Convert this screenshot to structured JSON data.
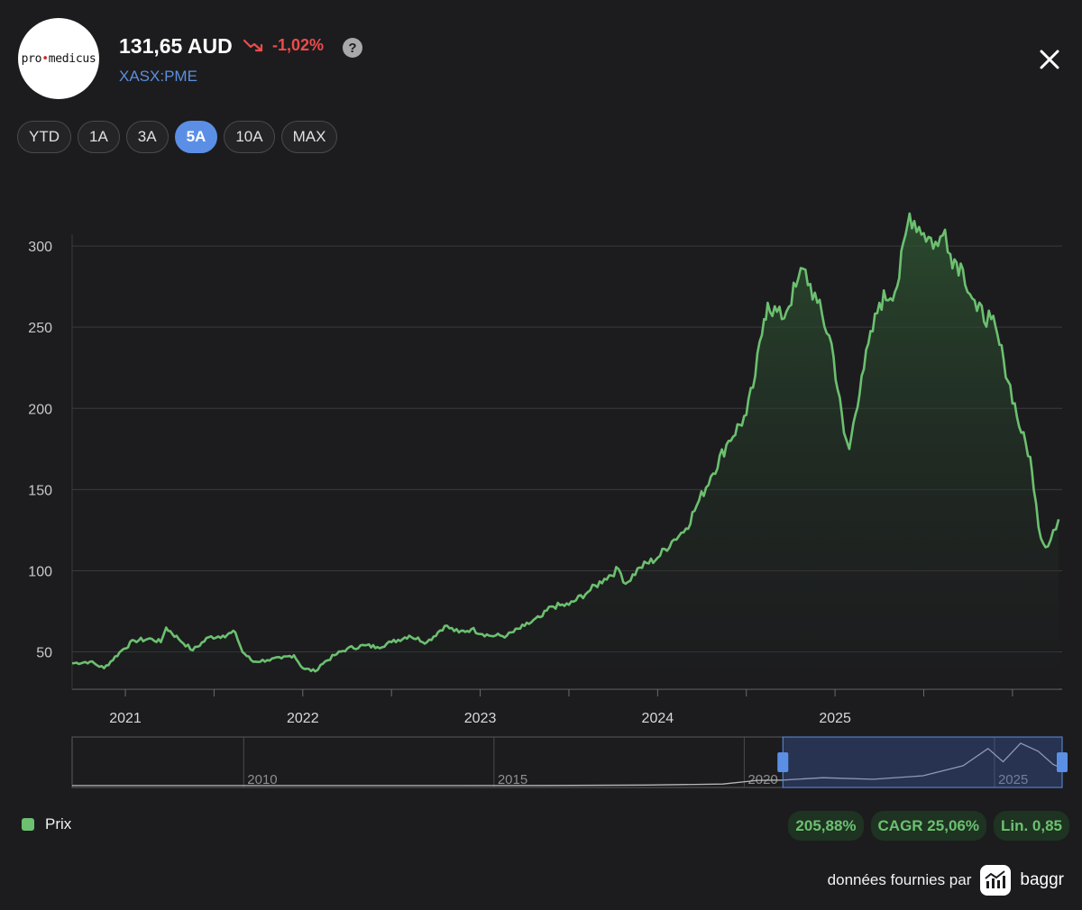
{
  "header": {
    "logo_text_left": "pro",
    "logo_text_dot": "•",
    "logo_text_right": "medicus",
    "price": "131,65 AUD",
    "change": "-1,02%",
    "change_color": "#ef4b4b",
    "ticker": "XASX:PME",
    "help_label": "?",
    "close_icon": "close-icon"
  },
  "ranges": [
    {
      "label": "YTD",
      "active": false
    },
    {
      "label": "1A",
      "active": false
    },
    {
      "label": "3A",
      "active": false
    },
    {
      "label": "5A",
      "active": true
    },
    {
      "label": "10A",
      "active": false
    },
    {
      "label": "MAX",
      "active": false
    }
  ],
  "legend": {
    "label": "Prix",
    "color": "#6cc070"
  },
  "badges": [
    "205,88%",
    "CAGR 25,06%",
    "Lin. 0,85"
  ],
  "credit": {
    "text": "données fournies par",
    "brand": "baggr"
  },
  "chart_data": {
    "type": "area",
    "series": [
      {
        "name": "Prix",
        "color": "#6cc070",
        "points": [
          [
            2020.7,
            43
          ],
          [
            2020.8,
            44
          ],
          [
            2020.88,
            40
          ],
          [
            2020.98,
            51
          ],
          [
            2021.05,
            57
          ],
          [
            2021.15,
            58
          ],
          [
            2021.2,
            56
          ],
          [
            2021.23,
            65
          ],
          [
            2021.3,
            58
          ],
          [
            2021.38,
            51
          ],
          [
            2021.47,
            59
          ],
          [
            2021.55,
            60
          ],
          [
            2021.62,
            62
          ],
          [
            2021.66,
            50
          ],
          [
            2021.72,
            44
          ],
          [
            2021.8,
            45
          ],
          [
            2021.88,
            46
          ],
          [
            2021.95,
            48
          ],
          [
            2022.0,
            40
          ],
          [
            2022.07,
            38
          ],
          [
            2022.1,
            42
          ],
          [
            2022.18,
            48
          ],
          [
            2022.25,
            52
          ],
          [
            2022.35,
            54
          ],
          [
            2022.42,
            53
          ],
          [
            2022.5,
            56
          ],
          [
            2022.6,
            60
          ],
          [
            2022.7,
            56
          ],
          [
            2022.8,
            66
          ],
          [
            2022.88,
            62
          ],
          [
            2022.95,
            64
          ],
          [
            2023.05,
            60
          ],
          [
            2023.15,
            60
          ],
          [
            2023.25,
            66
          ],
          [
            2023.35,
            72
          ],
          [
            2023.4,
            78
          ],
          [
            2023.5,
            79
          ],
          [
            2023.62,
            88
          ],
          [
            2023.7,
            95
          ],
          [
            2023.78,
            101
          ],
          [
            2023.82,
            92
          ],
          [
            2023.9,
            102
          ],
          [
            2024.0,
            108
          ],
          [
            2024.08,
            118
          ],
          [
            2024.16,
            126
          ],
          [
            2024.22,
            140
          ],
          [
            2024.3,
            158
          ],
          [
            2024.4,
            180
          ],
          [
            2024.5,
            196
          ],
          [
            2024.55,
            220
          ],
          [
            2024.6,
            255
          ],
          [
            2024.62,
            265
          ],
          [
            2024.7,
            255
          ],
          [
            2024.78,
            275
          ],
          [
            2024.82,
            286
          ],
          [
            2024.9,
            265
          ],
          [
            2024.98,
            240
          ],
          [
            2025.05,
            185
          ],
          [
            2025.08,
            175
          ],
          [
            2025.15,
            220
          ],
          [
            2025.25,
            265
          ],
          [
            2025.35,
            275
          ],
          [
            2025.42,
            320
          ],
          [
            2025.5,
            308
          ],
          [
            2025.58,
            300
          ],
          [
            2025.62,
            310
          ],
          [
            2025.65,
            295
          ],
          [
            2025.72,
            286
          ],
          [
            2025.8,
            260
          ],
          [
            2025.88,
            255
          ],
          [
            2025.95,
            230
          ],
          [
            2026.05,
            185
          ],
          [
            2026.1,
            170
          ],
          [
            2026.12,
            150
          ],
          [
            2026.16,
            120
          ],
          [
            2026.2,
            115
          ],
          [
            2026.23,
            125
          ],
          [
            2026.26,
            131.65
          ]
        ]
      }
    ],
    "x_ticks": [
      "2021",
      "2022",
      "2023",
      "2024",
      "2025"
    ],
    "y_ticks": [
      50,
      100,
      150,
      200,
      250,
      300
    ],
    "ylim": [
      27,
      335
    ],
    "xlim": [
      2020.7,
      2026.28
    ],
    "grid": true,
    "navigator": {
      "x_ticks": [
        "2010",
        "2015",
        "2020",
        "2025"
      ],
      "xlim": [
        2006.5,
        2026.28
      ],
      "selected_range": [
        2020.7,
        2026.28
      ]
    }
  }
}
